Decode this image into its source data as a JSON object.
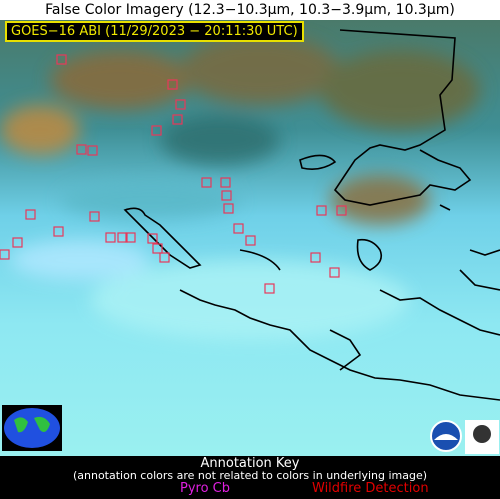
{
  "header": {
    "title": "False Color Imagery (12.3−10.3µm, 10.3−3.9µm, 10.3µm)",
    "subtitle": "GOES−16 ABI (11/29/2023 − 20:11:30 UTC)"
  },
  "annotation_key": {
    "title": "Annotation Key",
    "note": "(annotation colors are not related to colors in underlying image)",
    "items": [
      "Pyro Cb",
      "Wildfire Detection"
    ]
  }
}
